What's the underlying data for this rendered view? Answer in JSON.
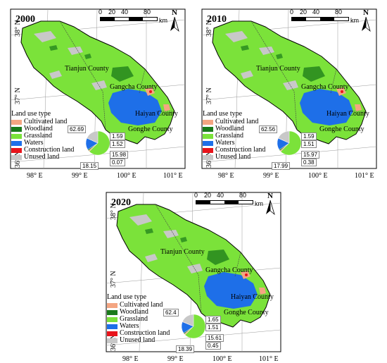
{
  "panels": [
    {
      "year": "2000",
      "pie": {
        "grassland": "62.69",
        "cultivated": "1.59",
        "woodland": "1.52",
        "waters": "15.98",
        "construction": "0.07",
        "unused": "18.15"
      }
    },
    {
      "year": "2010",
      "pie": {
        "grassland": "62.56",
        "cultivated": "1.59",
        "woodland": "1.51",
        "waters": "15.97",
        "construction": "0.38",
        "unused": "17.99"
      }
    },
    {
      "year": "2020",
      "pie": {
        "grassland": "62.4",
        "cultivated": "1.65",
        "woodland": "1.51",
        "waters": "15.61",
        "construction": "0.45",
        "unused": "18.39"
      }
    }
  ],
  "labels": {
    "lat_top": "38° N",
    "lat_mid": "37° N",
    "lat_bot": "36° N",
    "lon": [
      "98° E",
      "99° E",
      "100° E",
      "101° E"
    ],
    "counties": {
      "tianjun": "Tianjun County",
      "gangcha": "Gangcha County",
      "haiyan": "Haiyan County",
      "gonghe": "Gonghe County"
    },
    "scale": [
      "0",
      "20",
      "40",
      "80"
    ],
    "scale_unit": "km",
    "north": "N",
    "legend_title": "Land use type",
    "legend": [
      "Cultivated land",
      "Woodland",
      "Grassland",
      "Waters",
      "Construction land",
      "Unused land"
    ]
  },
  "colors": {
    "cultivated": "#f4a582",
    "woodland": "#1a7a1a",
    "grassland": "#7be23a",
    "waters": "#1e6fe8",
    "construction": "#e8141b",
    "unused": "#c8c8c8"
  }
}
